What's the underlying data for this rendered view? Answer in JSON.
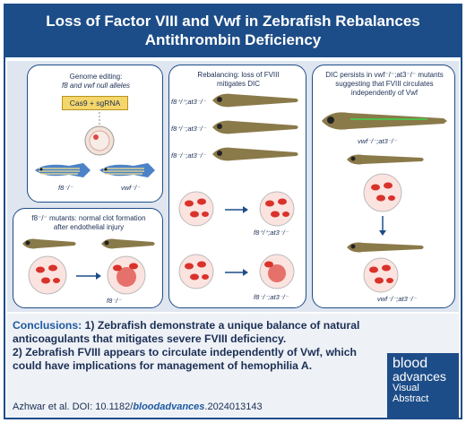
{
  "title": {
    "line1": "Loss of Factor VIII and Vwf in Zebrafish Rebalances",
    "line2": "Antithrombin Deficiency"
  },
  "panel_genome": {
    "heading1": "Genome editing:",
    "heading2": "f8 and vwf null alleles",
    "reagent": "Cas9 + sgRNA",
    "fish_left": "f8⁻/⁻",
    "fish_right": "vwf⁻/⁻"
  },
  "panel_clot": {
    "heading1": "f8⁻/⁻ mutants: normal clot formation",
    "heading2": "after endothelial injury",
    "label": "f8⁻/⁻"
  },
  "panel_rebal": {
    "heading1": "Rebalancing: loss of FVIII",
    "heading2": "mitigates DIC",
    "row1": "f8⁺/⁺;at3⁻/⁻",
    "row2": "f8⁺/⁻;at3⁻/⁻",
    "row3": "f8⁻/⁻;at3⁻/⁻",
    "label_a": "f8⁺/⁺;at3⁻/⁻",
    "label_b": "f8⁻/⁻;at3⁻/⁻"
  },
  "panel_dic": {
    "heading1": "DIC persists in vwf⁻/⁻;at3⁻/⁻ mutants",
    "heading2": "suggesting that FVIII circulates",
    "heading3": "independently of Vwf",
    "label_top": "vwf⁻/⁻;at3⁻/⁻",
    "label_bottom": "vwf⁻/⁻;at3⁻/⁻"
  },
  "conclusions": {
    "heading": "Conclusions:",
    "point1": "1) Zebrafish demonstrate a unique balance of natural anticoagulants that mitigates severe FVIII deficiency.",
    "point2": "2) Zebrafish FVIII appears to circulate independently of Vwf, which could have implications for management of hemophilia A."
  },
  "citation": {
    "authors": "Azhwar et al. DOI: 10.1182/",
    "doi_em": "bloodadvances",
    "doi_rest": ".2024013143"
  },
  "logo": {
    "line1": "blood",
    "line2": "advances",
    "line3": "Visual",
    "line4": "Abstract"
  },
  "colors": {
    "brand": "#1d4d88",
    "panel_bg": "#dfe6f0",
    "blood": "#d9322b"
  }
}
